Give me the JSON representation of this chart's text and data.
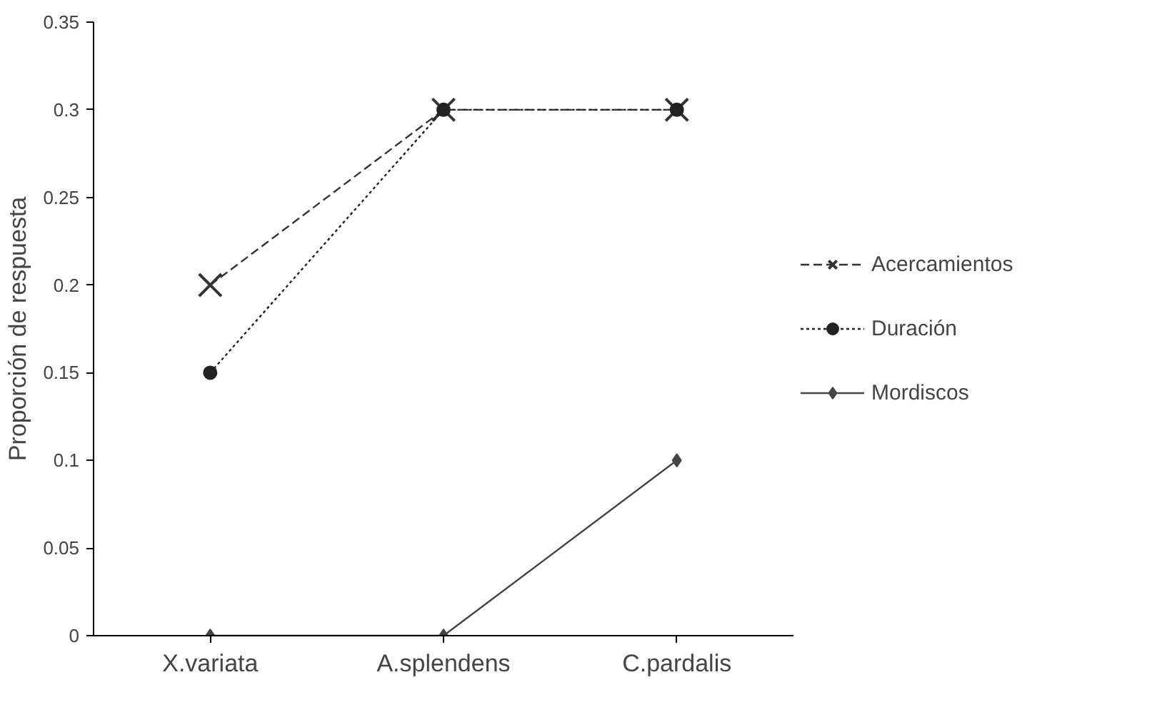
{
  "chart_data": {
    "type": "line",
    "ylabel": "Proporción de respuesta",
    "categories": [
      "X.variata",
      "A.splendens",
      "C.pardalis"
    ],
    "series": [
      {
        "name": "Acercamientos",
        "color": "#333333",
        "values": [
          0.2,
          0.3,
          0.3
        ],
        "marker": "cross",
        "line_style": "dashed"
      },
      {
        "name": "Duración",
        "color": "#222222",
        "values": [
          0.15,
          0.3,
          0.3
        ],
        "marker": "circle",
        "line_style": "dotted"
      },
      {
        "name": "Mordiscos",
        "color": "#444444",
        "values": [
          0,
          0,
          0.1
        ],
        "marker": "diamond",
        "line_style": "solid"
      }
    ],
    "ylim": [
      0,
      0.35
    ],
    "yticks": [
      0,
      0.05,
      0.1,
      0.15,
      0.2,
      0.25,
      0.3,
      0.35
    ],
    "grid": false,
    "legend": "right"
  }
}
